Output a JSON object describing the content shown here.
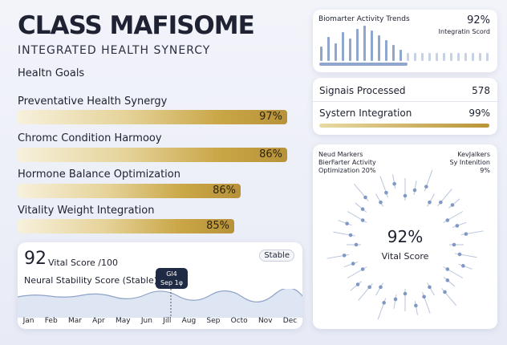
{
  "header": {
    "title": "CLASS MAFISOME",
    "subtitle": "INTEGRATED HEALTH SYNERCY"
  },
  "goals": {
    "heading": "Healtn Goals",
    "items": [
      {
        "label": "Preventative Health Synergy",
        "value": "97%"
      },
      {
        "label": "Chromc Condition Harmooy",
        "value": "86%"
      },
      {
        "label": "Hormone Balance Optimization",
        "value": "86%"
      },
      {
        "label": "Vitality Weight Integration",
        "value": "85%"
      }
    ]
  },
  "vital": {
    "score": "92",
    "score_label": "Vital Score /100",
    "badge": "Stable",
    "subtitle": "Neural Stability Score (Stable)",
    "tooltip": [
      "Gl4",
      "Sep 1φ"
    ],
    "months": [
      "Jan",
      "Feb",
      "Mar",
      "Apr",
      "May",
      "Jun",
      "Jill",
      "Aug",
      "Sep",
      "Octo",
      "Nov",
      "Dec"
    ]
  },
  "activity": {
    "title": "Biomarter Activity Trends",
    "value": "92%",
    "value_label": "Integratin Scord"
  },
  "metrics": {
    "rows": [
      [
        "Signais Processed",
        "578"
      ],
      [
        "Systern Integration",
        "99%"
      ]
    ]
  },
  "markers": {
    "left": [
      "Neud Markers",
      "BierFarter Activity",
      "Optimization 20%"
    ],
    "right": [
      "KevJalkers",
      "Sy Intenition",
      "9%"
    ],
    "center_value": "92%",
    "center_label": "Vital Score"
  }
}
